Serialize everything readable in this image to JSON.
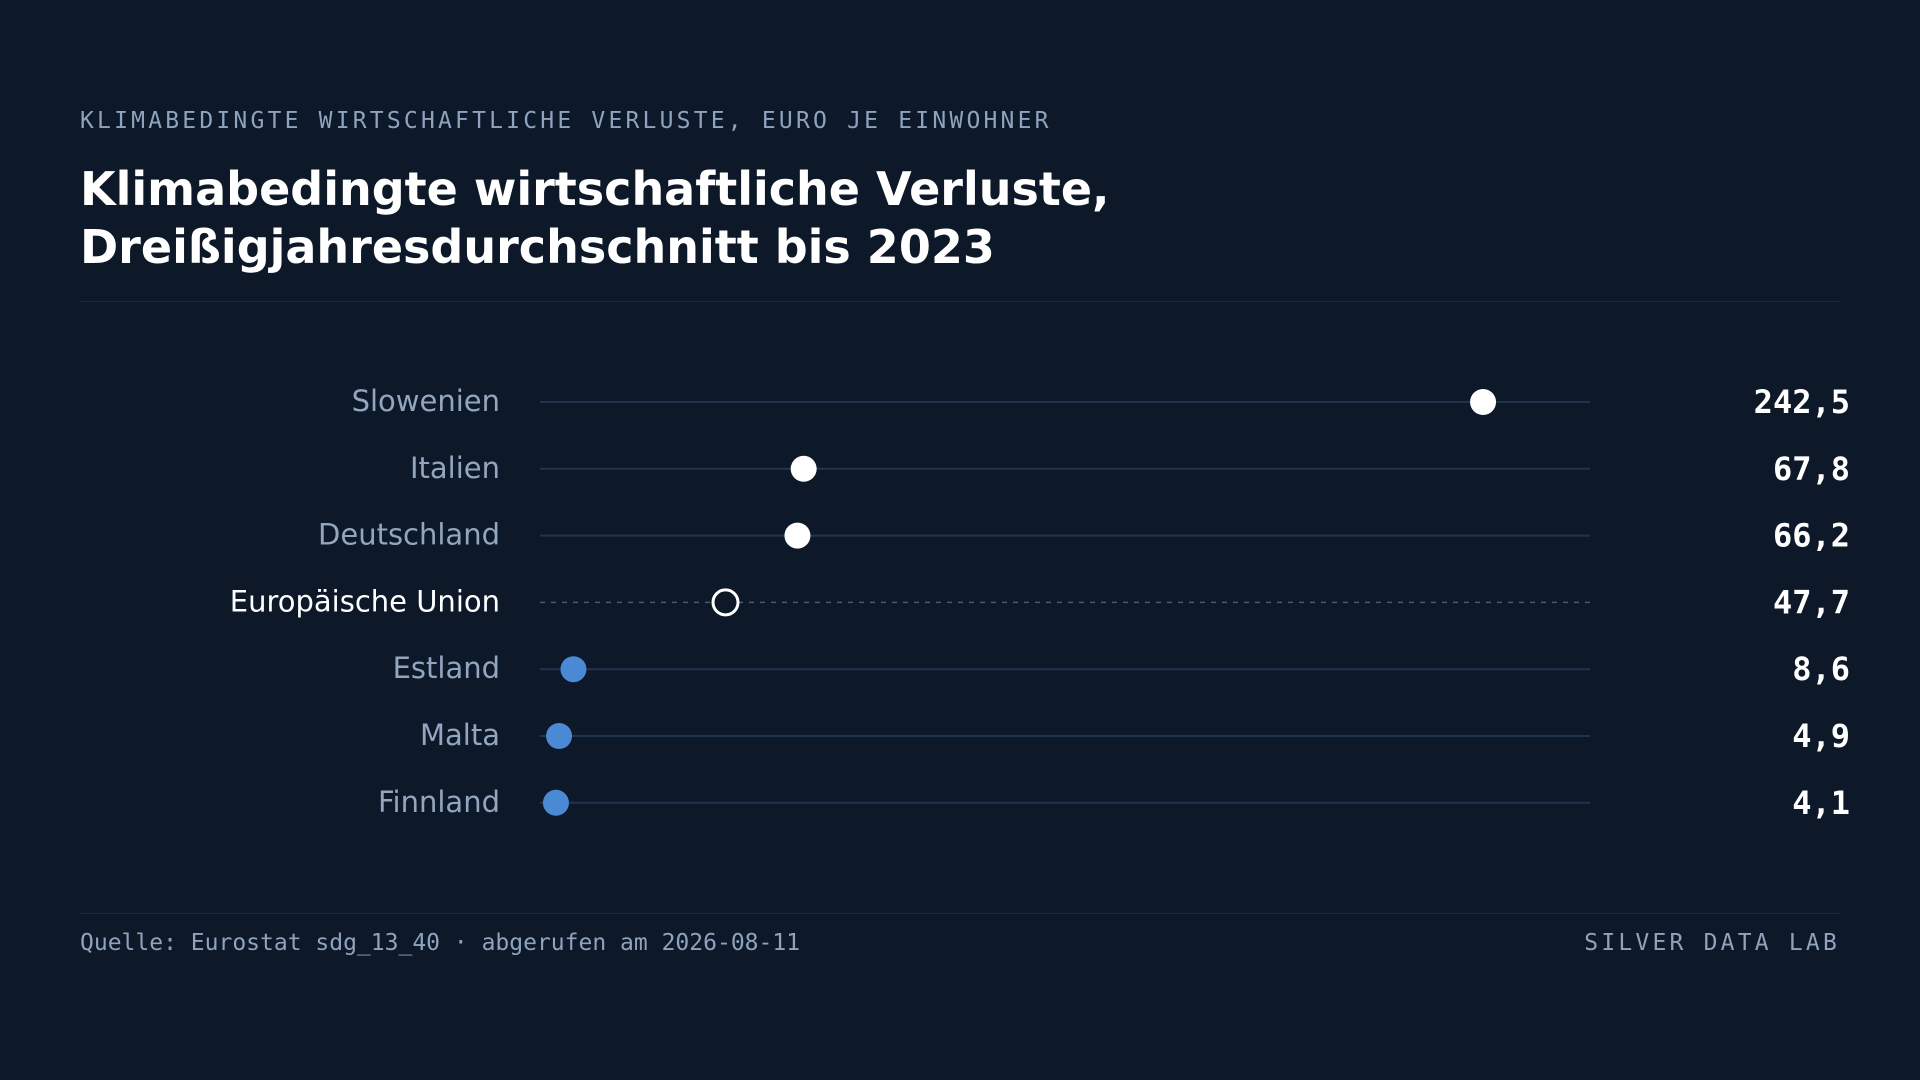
{
  "header": {
    "kicker": "KLIMABEDINGTE WIRTSCHAFTLICHE VERLUSTE, EURO JE EINWOHNER",
    "title_line1": "Klimabedingte wirtschaftliche Verluste,",
    "title_line2": "Dreißigjahresdurchschnitt bis 2023"
  },
  "footer": {
    "source": "Quelle: Eurostat sdg_13_40 · abgerufen am 2026-08-11",
    "brand": "SILVER DATA LAB"
  },
  "colors": {
    "background": "#0d1829",
    "track": "#21344d",
    "label": "#93a6bf",
    "highlight_label": "#ffffff",
    "dot_high": "#ffffff",
    "dot_low": "#4a8ad4",
    "value": "#ffffff"
  },
  "chart_data": {
    "type": "dot",
    "unit": "Euro je Einwohner",
    "xlim": [
      0,
      270
    ],
    "grid": false,
    "legend": "none",
    "categories": [
      "Slowenien",
      "Italien",
      "Deutschland",
      "Europäische Union",
      "Estland",
      "Malta",
      "Finnland"
    ],
    "values": [
      242.5,
      67.8,
      66.2,
      47.7,
      8.6,
      4.9,
      4.1
    ],
    "value_labels": [
      "242,5",
      "67,8",
      "66,2",
      "47,7",
      "8,6",
      "4,9",
      "4,1"
    ],
    "highlight": [
      "Europäische Union"
    ],
    "dot_style": [
      "filled-white",
      "filled-white",
      "filled-white",
      "hollow-white",
      "filled-blue",
      "filled-blue",
      "filled-blue"
    ]
  }
}
